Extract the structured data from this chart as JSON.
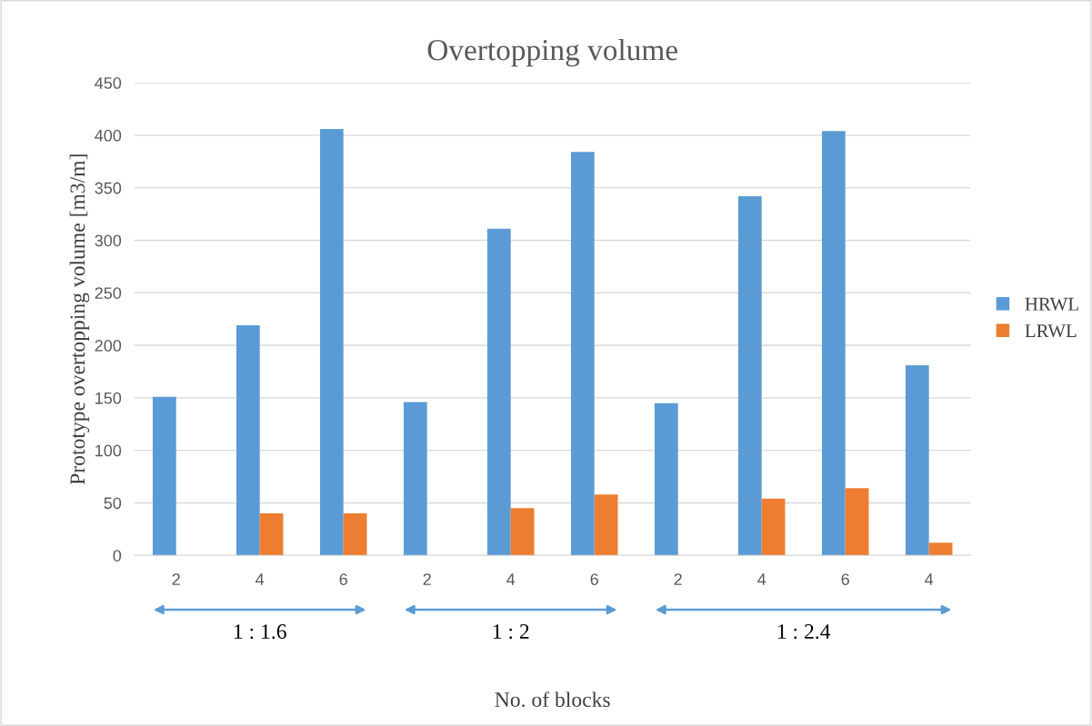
{
  "chart_data": {
    "type": "bar",
    "title": "Overtopping volume",
    "xlabel": "No. of blocks",
    "ylabel": "Prototype overtopping volume [m3/m]",
    "categories": [
      "2",
      "4",
      "6",
      "2",
      "4",
      "6",
      "2",
      "4",
      "6",
      "4"
    ],
    "series": [
      {
        "name": "HRWL",
        "color": "#5b9bd5",
        "values": [
          151,
          219,
          406,
          146,
          311,
          384,
          145,
          342,
          404,
          181
        ]
      },
      {
        "name": "LRWL",
        "color": "#ed7d31",
        "values": [
          null,
          40,
          40,
          null,
          45,
          58,
          null,
          54,
          64,
          12
        ]
      }
    ],
    "ylim": [
      0,
      450
    ],
    "yticks": [
      0,
      50,
      100,
      150,
      200,
      250,
      300,
      350,
      400,
      450
    ],
    "grid": "y",
    "legend": "right",
    "annotations": [
      "1 : 1.6",
      "1 : 2",
      "1 : 2.4"
    ]
  }
}
